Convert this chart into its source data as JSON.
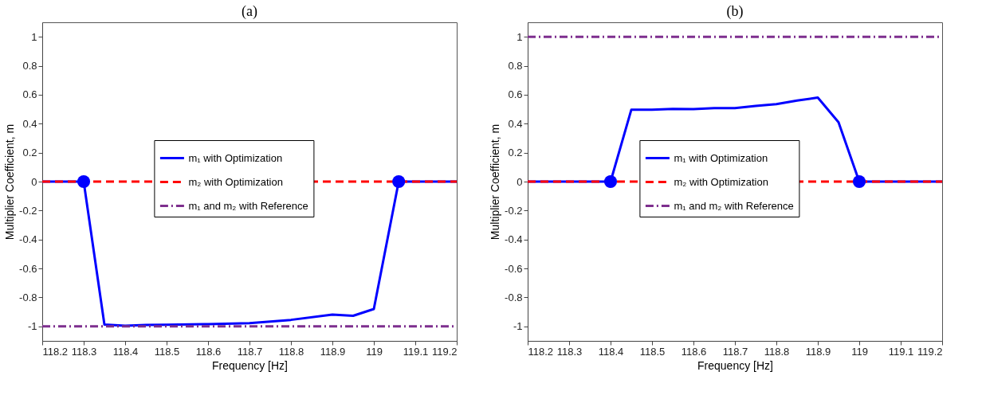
{
  "chart_data": [
    {
      "type": "line",
      "title": "(a)",
      "xlabel": "Frequency [Hz]",
      "ylabel": "Multiplier Coefficient, m",
      "xlim": [
        118.2,
        119.2
      ],
      "ylim": [
        -1.1,
        1.1
      ],
      "xticks": [
        118.2,
        118.3,
        118.4,
        118.5,
        118.6,
        118.7,
        118.8,
        118.9,
        119,
        119.1,
        119.2
      ],
      "yticks": [
        -1,
        -0.8,
        -0.6,
        -0.4,
        -0.2,
        0,
        0.2,
        0.4,
        0.6,
        0.8,
        1
      ],
      "grid": false,
      "legend": "center",
      "series": [
        {
          "name": "m₁ with Optimization",
          "color": "#0000ff",
          "line_style": "solid",
          "x": [
            118.2,
            118.3,
            118.35,
            118.4,
            118.45,
            118.5,
            118.6,
            118.7,
            118.8,
            118.9,
            118.95,
            119.0,
            119.06,
            119.2
          ],
          "values": [
            0,
            0,
            -0.987,
            -0.995,
            -0.99,
            -0.988,
            -0.984,
            -0.978,
            -0.955,
            -0.918,
            -0.927,
            -0.88,
            0,
            0
          ]
        },
        {
          "name": "m₂ with Optimization",
          "color": "#ff0000",
          "line_style": "dashed",
          "x": [
            118.2,
            119.2
          ],
          "values": [
            0,
            0
          ]
        },
        {
          "name": "m₁ and m₂ with Reference",
          "color": "#7e2f8e",
          "line_style": "dashdot",
          "x": [
            118.2,
            119.2
          ],
          "values": [
            -1,
            -1
          ]
        },
        {
          "type": "scatter",
          "color": "#0000ff",
          "marker": "circle",
          "x": [
            118.3,
            119.06
          ],
          "values": [
            0,
            0
          ]
        }
      ]
    },
    {
      "type": "line",
      "title": "(b)",
      "xlabel": "Frequency [Hz]",
      "ylabel": "Multiplier Coefficient, m",
      "xlim": [
        118.2,
        119.2
      ],
      "ylim": [
        -1.1,
        1.1
      ],
      "xticks": [
        118.2,
        118.3,
        118.4,
        118.5,
        118.6,
        118.7,
        118.8,
        118.9,
        119,
        119.1,
        119.2
      ],
      "yticks": [
        -1,
        -0.8,
        -0.6,
        -0.4,
        -0.2,
        0,
        0.2,
        0.4,
        0.6,
        0.8,
        1
      ],
      "grid": false,
      "legend": "center",
      "series": [
        {
          "name": "m₁ with Optimization",
          "color": "#0000ff",
          "line_style": "solid",
          "x": [
            118.2,
            118.4,
            118.45,
            118.5,
            118.55,
            118.6,
            118.65,
            118.7,
            118.75,
            118.8,
            118.85,
            118.9,
            118.95,
            119.0,
            119.2
          ],
          "values": [
            0,
            0,
            0.496,
            0.496,
            0.502,
            0.5,
            0.507,
            0.507,
            0.522,
            0.535,
            0.56,
            0.58,
            0.41,
            0,
            0
          ]
        },
        {
          "name": "m₂ with Optimization",
          "color": "#ff0000",
          "line_style": "dashed",
          "x": [
            118.2,
            119.2
          ],
          "values": [
            0,
            0
          ]
        },
        {
          "name": "m₁ and m₂ with Reference",
          "color": "#7e2f8e",
          "line_style": "dashdot",
          "x": [
            118.2,
            119.2
          ],
          "values": [
            1,
            1
          ]
        },
        {
          "type": "scatter",
          "color": "#0000ff",
          "marker": "circle",
          "x": [
            118.4,
            119.0
          ],
          "values": [
            0,
            0
          ]
        }
      ]
    }
  ]
}
